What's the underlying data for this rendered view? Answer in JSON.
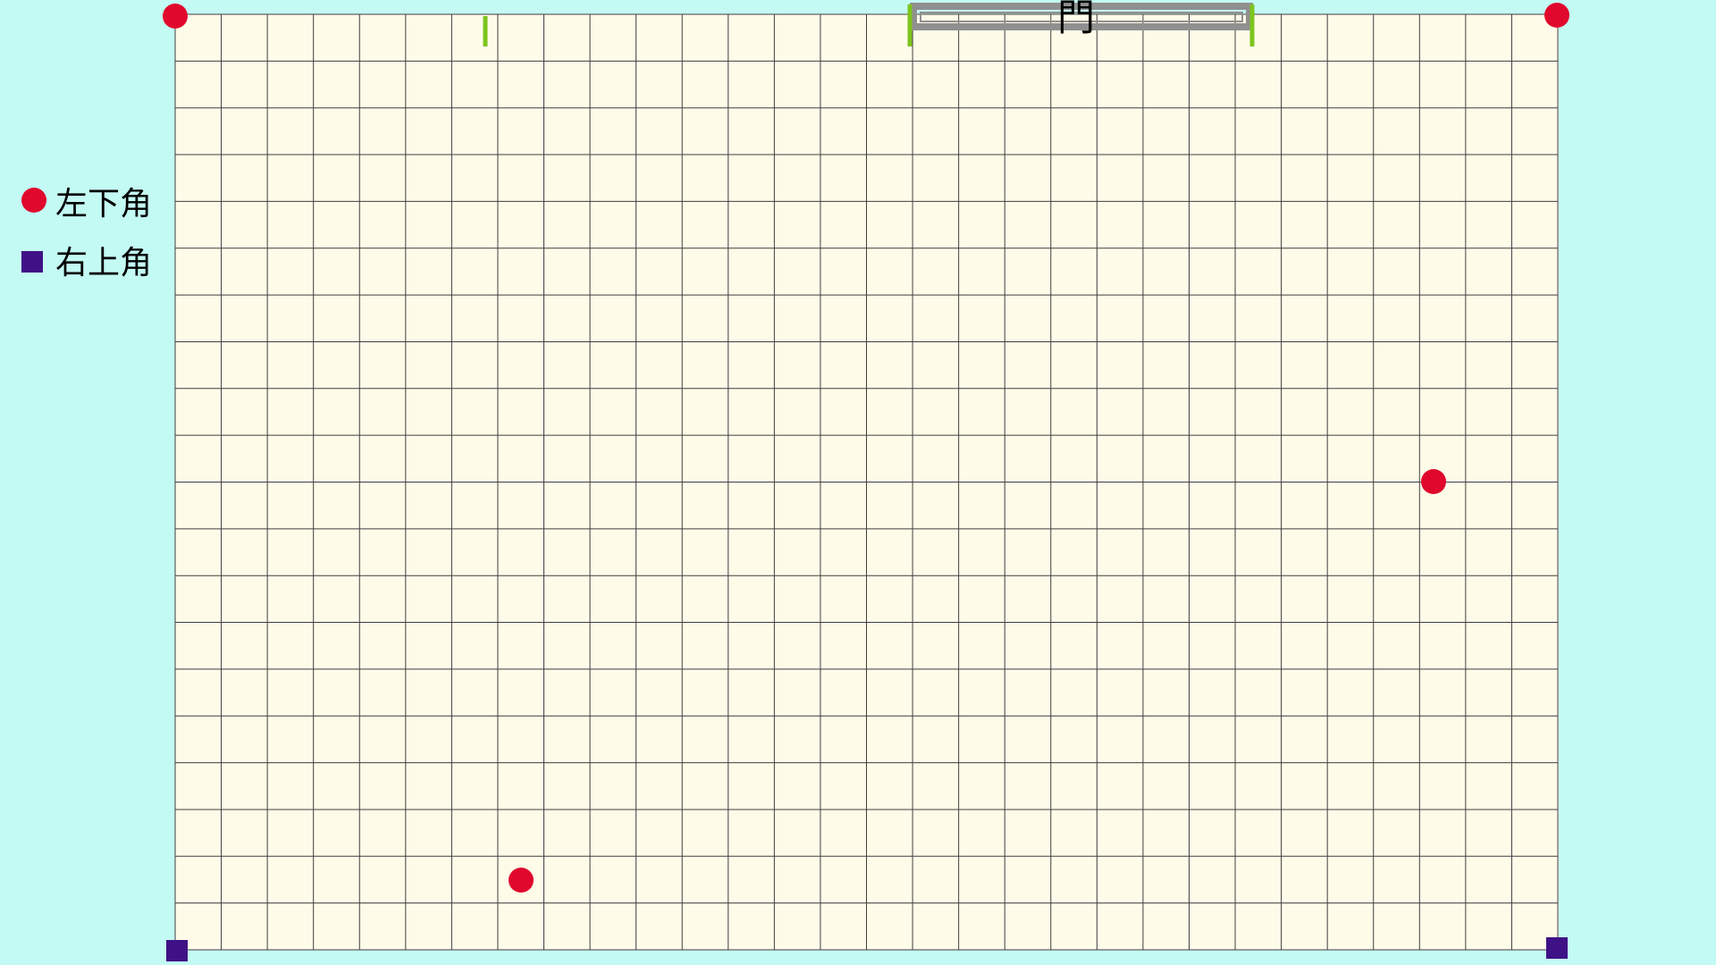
{
  "legend": {
    "bottom_left_label": "左下角",
    "top_right_label": "右上角"
  },
  "gate": {
    "label": "門"
  },
  "colors": {
    "background": "#c4faf4",
    "board_fill": "#fffbe9",
    "grid_line": "#3f3f3f",
    "bottom_left_marker": "#e0082c",
    "top_right_marker": "#3f1186",
    "gate_frame": "#909090",
    "gate_post": "#7dc41d"
  },
  "icons": {
    "bottom_left_marker": "red-circle",
    "top_right_marker": "purple-square"
  }
}
